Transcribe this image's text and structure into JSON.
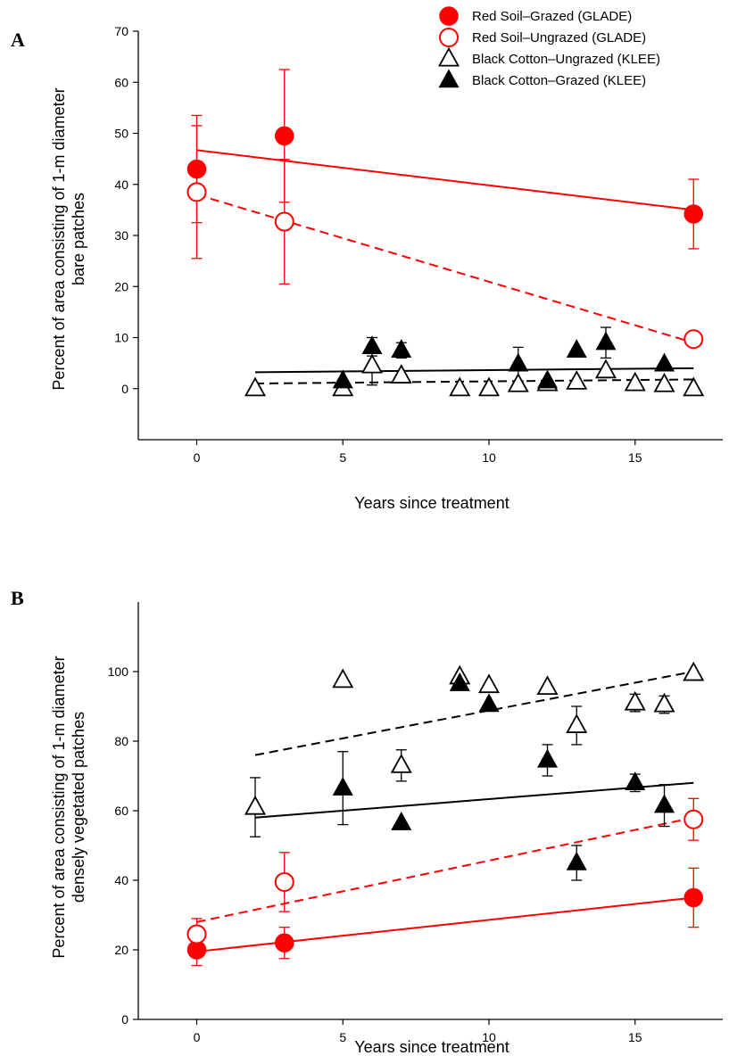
{
  "chart_data": [
    {
      "panel": "A",
      "type": "scatter",
      "xlabel": "Years since treatment",
      "ylabel": [
        "Percent of area consisting of 1-m diameter",
        "bare patches"
      ],
      "xlim": [
        -2,
        18
      ],
      "ylim": [
        -10,
        70
      ],
      "xticks": [
        0,
        5,
        10,
        15
      ],
      "yticks": [
        0,
        10,
        20,
        30,
        40,
        50,
        60,
        70
      ],
      "legend": {
        "placement": "top-right",
        "entries": [
          {
            "label": "Red Soil–Grazed (GLADE)",
            "marker": "filled-circle",
            "color": "#ff0000"
          },
          {
            "label": "Red Soil–Ungrazed (GLADE)",
            "marker": "open-circle",
            "color": "#ff0000"
          },
          {
            "label": "Black Cotton–Ungrazed (KLEE)",
            "marker": "open-triangle",
            "color": "#000000"
          },
          {
            "label": "Black Cotton–Grazed (KLEE)",
            "marker": "filled-triangle",
            "color": "#000000"
          }
        ]
      },
      "series": [
        {
          "name": "Red Soil–Grazed (GLADE)",
          "marker": "filled-circle",
          "color": "#ff0000",
          "line": "solid",
          "x": [
            0,
            3,
            17
          ],
          "y": [
            43,
            49.5,
            34.2
          ],
          "err": [
            10.5,
            13,
            6.8
          ],
          "trend": [
            [
              0,
              46.7
            ],
            [
              17,
              35
            ]
          ]
        },
        {
          "name": "Red Soil–Ungrazed (GLADE)",
          "marker": "open-circle",
          "color": "#ff0000",
          "line": "dashed",
          "x": [
            0,
            3,
            17
          ],
          "y": [
            38.5,
            32.7,
            9.7
          ],
          "err": [
            13,
            12.2,
            0
          ],
          "trend": [
            [
              0,
              38
            ],
            [
              17,
              9
            ]
          ]
        },
        {
          "name": "Black Cotton–Ungrazed (KLEE)",
          "marker": "open-triangle",
          "color": "#000000",
          "line": "dashed",
          "x": [
            2,
            5,
            6,
            7,
            9,
            10,
            11,
            12,
            13,
            14,
            15,
            16,
            17
          ],
          "y": [
            0,
            0,
            4.5,
            2.5,
            0,
            0,
            0.8,
            1,
            1.3,
            3.5,
            1,
            0.8,
            0
          ],
          "err": [
            0,
            0,
            3.8,
            0,
            0,
            0,
            0,
            0,
            0,
            0,
            0,
            0,
            0
          ],
          "trend": [
            [
              2,
              1
            ],
            [
              17,
              1.8
            ]
          ]
        },
        {
          "name": "Black Cotton–Grazed (KLEE)",
          "marker": "filled-triangle",
          "color": "#000000",
          "line": "solid",
          "x": [
            5,
            6,
            7,
            11,
            12,
            13,
            14,
            16
          ],
          "y": [
            1.5,
            8.2,
            7.5,
            4.8,
            1.5,
            7.5,
            9,
            4.8
          ],
          "err": [
            0,
            1.8,
            1.5,
            3.3,
            0,
            0,
            3,
            0
          ],
          "trend": [
            [
              2,
              3.2
            ],
            [
              17,
              4
            ]
          ]
        }
      ]
    },
    {
      "panel": "B",
      "type": "scatter",
      "xlabel": "Years since treatment",
      "ylabel": [
        "Percent of area consisting of 1-m diameter",
        "densely vegetated patches"
      ],
      "xlim": [
        -2,
        18
      ],
      "ylim": [
        0,
        120
      ],
      "xticks": [
        0,
        5,
        10,
        15
      ],
      "yticks": [
        0,
        20,
        40,
        60,
        80,
        100
      ],
      "series": [
        {
          "name": "Red Soil–Grazed (GLADE)",
          "marker": "filled-circle",
          "color": "#ff0000",
          "line": "solid",
          "x": [
            0,
            3,
            17
          ],
          "y": [
            20,
            22,
            35
          ],
          "err": [
            4.5,
            4.5,
            8.5
          ],
          "trend": [
            [
              0,
              19.5
            ],
            [
              17,
              35
            ]
          ]
        },
        {
          "name": "Red Soil–Ungrazed (GLADE)",
          "marker": "open-circle",
          "color": "#ff0000",
          "line": "dashed",
          "x": [
            0,
            3,
            17
          ],
          "y": [
            24.5,
            39.5,
            57.5
          ],
          "err": [
            4.5,
            8.5,
            6
          ],
          "trend": [
            [
              0,
              28
            ],
            [
              17,
              58
            ]
          ]
        },
        {
          "name": "Black Cotton–Ungrazed (KLEE)",
          "marker": "open-triangle",
          "color": "#000000",
          "line": "dashed",
          "x": [
            2,
            5,
            7,
            9,
            10,
            12,
            13,
            15,
            16,
            17
          ],
          "y": [
            61,
            97.5,
            73,
            98.5,
            96,
            95.5,
            84.5,
            91,
            90.5,
            99.5
          ],
          "err": [
            8.5,
            0,
            4.5,
            0,
            0,
            0,
            5.5,
            2.5,
            2.5,
            0
          ],
          "trend": [
            [
              2,
              76
            ],
            [
              17,
              100
            ]
          ]
        },
        {
          "name": "Black Cotton–Grazed (KLEE)",
          "marker": "filled-triangle",
          "color": "#000000",
          "line": "solid",
          "x": [
            5,
            7,
            9,
            10,
            12,
            13,
            15,
            16
          ],
          "y": [
            66.5,
            56.5,
            96.5,
            90.5,
            74.5,
            45,
            68,
            61.5
          ],
          "err": [
            10.5,
            0,
            0,
            0,
            4.5,
            5,
            2.5,
            6
          ],
          "trend": [
            [
              2,
              58
            ],
            [
              17,
              68
            ]
          ]
        }
      ]
    }
  ]
}
